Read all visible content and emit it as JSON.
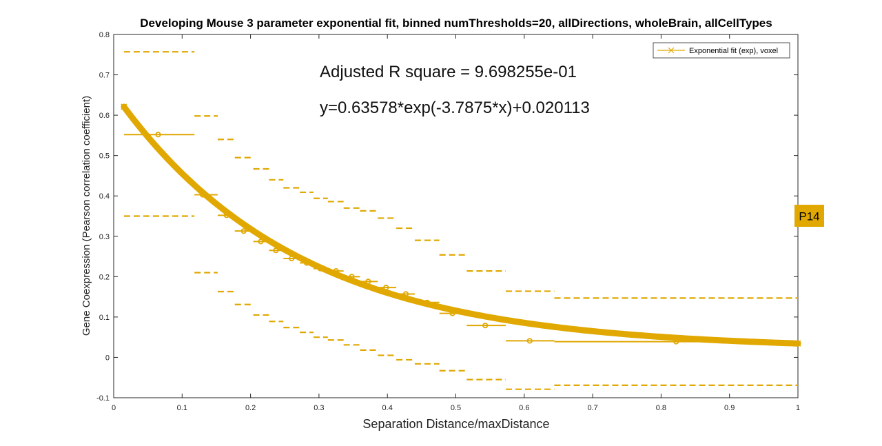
{
  "chart_data": {
    "type": "line",
    "title": "Developing Mouse 3 parameter exponential fit, binned numThresholds=20, allDirections, wholeBrain, allCellTypes",
    "xlabel": "Separation Distance/maxDistance",
    "ylabel": "Gene Coexpression (Pearson correlation coefficient)",
    "xlim": [
      0,
      1
    ],
    "ylim": [
      -0.1,
      0.8
    ],
    "xticks": [
      0,
      0.1,
      0.2,
      0.3,
      0.4,
      0.5,
      0.6,
      0.7,
      0.8,
      0.9,
      1
    ],
    "xtick_labels": [
      "0",
      "0.1",
      "0.2",
      "0.3",
      "0.4",
      "0.5",
      "0.6",
      "0.7",
      "0.8",
      "0.9",
      "1"
    ],
    "yticks": [
      -0.1,
      0,
      0.1,
      0.2,
      0.3,
      0.4,
      0.5,
      0.6,
      0.7,
      0.8
    ],
    "ytick_labels": [
      "-0.1",
      "0",
      "0.1",
      "0.2",
      "0.3",
      "0.4",
      "0.5",
      "0.6",
      "0.7",
      "0.8"
    ],
    "grid": false,
    "legend_position": "top-right",
    "color": "#e0a800",
    "fit": {
      "name": "Exponential fit (exp), voxel",
      "a": 0.63578,
      "b": -3.7875,
      "c": 0.020113,
      "x_start": 0.015,
      "x_end": 1.0
    },
    "annotations": {
      "r_square": "Adjusted R square = 9.698255e-01",
      "equation": "y=0.63578*exp(-3.7875*x)+0.020113"
    },
    "badge": "P14",
    "bins": [
      {
        "x0": 0.015,
        "x1": 0.118,
        "x": 0.065,
        "mean": 0.552,
        "upper": 0.757,
        "lower": 0.35
      },
      {
        "x0": 0.118,
        "x1": 0.152,
        "x": 0.13,
        "mean": 0.403,
        "upper": 0.598,
        "lower": 0.21
      },
      {
        "x0": 0.152,
        "x1": 0.177,
        "x": 0.165,
        "mean": 0.352,
        "upper": 0.54,
        "lower": 0.163
      },
      {
        "x0": 0.177,
        "x1": 0.204,
        "x": 0.19,
        "mean": 0.313,
        "upper": 0.495,
        "lower": 0.131
      },
      {
        "x0": 0.204,
        "x1": 0.227,
        "x": 0.215,
        "mean": 0.287,
        "upper": 0.467,
        "lower": 0.105
      },
      {
        "x0": 0.227,
        "x1": 0.248,
        "x": 0.237,
        "mean": 0.265,
        "upper": 0.44,
        "lower": 0.089
      },
      {
        "x0": 0.248,
        "x1": 0.272,
        "x": 0.26,
        "mean": 0.245,
        "upper": 0.42,
        "lower": 0.074
      },
      {
        "x0": 0.272,
        "x1": 0.292,
        "x": 0.282,
        "mean": 0.234,
        "upper": 0.409,
        "lower": 0.062
      },
      {
        "x0": 0.292,
        "x1": 0.313,
        "x": 0.302,
        "mean": 0.22,
        "upper": 0.394,
        "lower": 0.05
      },
      {
        "x0": 0.313,
        "x1": 0.336,
        "x": 0.325,
        "mean": 0.214,
        "upper": 0.386,
        "lower": 0.043
      },
      {
        "x0": 0.336,
        "x1": 0.36,
        "x": 0.348,
        "mean": 0.2,
        "upper": 0.37,
        "lower": 0.031
      },
      {
        "x0": 0.36,
        "x1": 0.386,
        "x": 0.372,
        "mean": 0.188,
        "upper": 0.363,
        "lower": 0.018
      },
      {
        "x0": 0.386,
        "x1": 0.413,
        "x": 0.398,
        "mean": 0.173,
        "upper": 0.345,
        "lower": 0.005
      },
      {
        "x0": 0.413,
        "x1": 0.44,
        "x": 0.427,
        "mean": 0.157,
        "upper": 0.32,
        "lower": -0.006
      },
      {
        "x0": 0.44,
        "x1": 0.476,
        "x": 0.458,
        "mean": 0.136,
        "upper": 0.29,
        "lower": -0.016
      },
      {
        "x0": 0.476,
        "x1": 0.516,
        "x": 0.495,
        "mean": 0.109,
        "upper": 0.254,
        "lower": -0.033
      },
      {
        "x0": 0.516,
        "x1": 0.573,
        "x": 0.543,
        "mean": 0.079,
        "upper": 0.214,
        "lower": -0.055
      },
      {
        "x0": 0.573,
        "x1": 0.644,
        "x": 0.608,
        "mean": 0.041,
        "upper": 0.164,
        "lower": -0.079
      },
      {
        "x0": 0.644,
        "x1": 1.0,
        "x": 0.822,
        "mean": 0.039,
        "upper": 0.147,
        "lower": -0.069
      }
    ]
  }
}
